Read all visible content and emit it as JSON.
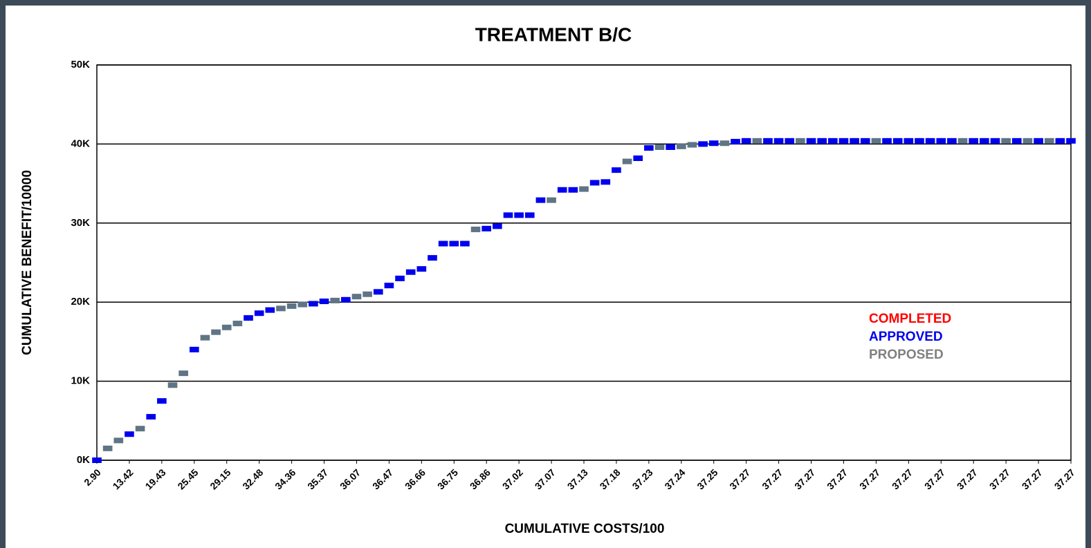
{
  "chart_data": {
    "type": "step",
    "title": "TREATMENT B/C",
    "x_label": "CUMULATIVE COSTS/100",
    "y_label": "CUMULATIVE BENEFIT/10000",
    "categories": [
      "2.90",
      null,
      null,
      "13.42",
      null,
      null,
      "19.43",
      null,
      null,
      "25.45",
      null,
      null,
      "29.15",
      null,
      null,
      "32.48",
      null,
      null,
      "34.36",
      null,
      null,
      "35.37",
      null,
      null,
      "36.07",
      null,
      null,
      "36.47",
      null,
      null,
      "36.66",
      null,
      null,
      "36.75",
      null,
      null,
      "36.86",
      null,
      null,
      "37.02",
      null,
      null,
      "37.07",
      null,
      null,
      "37.13",
      null,
      null,
      "37.18",
      null,
      null,
      "37.23",
      null,
      null,
      "37.24",
      null,
      null,
      "37.25",
      null,
      null,
      "37.27",
      null,
      null,
      "37.27",
      null,
      null,
      "37.27",
      null,
      null,
      "37.27",
      null,
      null,
      "37.27",
      null,
      null,
      "37.27",
      null,
      null,
      "37.27",
      null,
      null,
      "37.27",
      null,
      null,
      "37.27",
      null,
      null,
      "37.27",
      null,
      null,
      "37.27"
    ],
    "series": [
      {
        "name": "COMPLETED",
        "color": "#ff0000",
        "values": [
          null,
          null,
          null,
          null,
          null,
          null,
          null,
          null,
          null,
          null,
          null,
          null,
          null,
          null,
          null,
          null,
          null,
          null,
          null,
          null,
          null,
          null,
          null,
          null,
          null,
          null,
          null,
          null,
          null,
          null,
          null,
          null,
          null,
          null,
          null,
          null,
          null,
          null,
          null,
          null,
          null,
          null,
          null,
          null,
          null,
          null,
          null,
          null,
          null,
          null,
          null,
          null,
          null,
          null,
          null,
          null,
          null,
          null,
          null,
          null,
          null,
          null,
          null,
          null,
          null,
          null,
          null,
          null,
          null,
          null,
          null,
          null,
          null,
          null,
          null,
          null,
          null,
          null,
          null,
          null,
          null,
          null,
          null,
          null,
          null,
          null,
          null,
          null,
          null,
          null,
          null
        ]
      },
      {
        "name": "APPROVED",
        "color": "#0000ee",
        "values": [
          0,
          null,
          null,
          3300,
          null,
          5500,
          7500,
          null,
          null,
          14000,
          null,
          null,
          null,
          null,
          18000,
          18600,
          19000,
          null,
          null,
          null,
          19800,
          20100,
          null,
          20300,
          null,
          null,
          21300,
          22100,
          23000,
          23800,
          24200,
          25600,
          27400,
          27400,
          27400,
          null,
          29300,
          29600,
          31000,
          31000,
          31000,
          32900,
          null,
          34200,
          34200,
          null,
          35100,
          35200,
          36700,
          null,
          38200,
          39500,
          null,
          39600,
          null,
          null,
          40000,
          40100,
          null,
          40300,
          40400,
          null,
          40400,
          40400,
          40400,
          null,
          40400,
          40400,
          40400,
          40400,
          40400,
          40400,
          null,
          40400,
          40400,
          40400,
          40400,
          40400,
          40400,
          40400,
          null,
          40400,
          40400,
          40400,
          null,
          40400,
          null,
          40400,
          null,
          40400,
          40400
        ]
      },
      {
        "name": "PROPOSED",
        "color": "#808080",
        "marker_color": "#5f7485",
        "values": [
          null,
          1500,
          2500,
          null,
          4000,
          null,
          null,
          9500,
          11000,
          null,
          15500,
          16200,
          16800,
          17300,
          null,
          null,
          null,
          19200,
          19500,
          19700,
          null,
          null,
          20200,
          null,
          20700,
          21000,
          null,
          null,
          null,
          null,
          null,
          null,
          null,
          null,
          null,
          29200,
          null,
          null,
          null,
          null,
          null,
          null,
          32900,
          null,
          null,
          34300,
          null,
          null,
          null,
          37800,
          null,
          null,
          39600,
          null,
          39700,
          39900,
          null,
          null,
          40100,
          null,
          null,
          40400,
          null,
          null,
          null,
          40400,
          null,
          null,
          null,
          null,
          null,
          null,
          40400,
          null,
          null,
          null,
          null,
          null,
          null,
          null,
          40400,
          null,
          null,
          null,
          40400,
          null,
          40400,
          null,
          40400,
          null,
          null
        ]
      }
    ],
    "ylim": [
      0,
      50000
    ],
    "yticks": [
      {
        "value": 0,
        "label": "0K"
      },
      {
        "value": 10000,
        "label": "10K"
      },
      {
        "value": 20000,
        "label": "20K"
      },
      {
        "value": 30000,
        "label": "30K"
      },
      {
        "value": 40000,
        "label": "40K"
      },
      {
        "value": 50000,
        "label": "50K"
      }
    ],
    "grid": true,
    "legend": "right"
  }
}
